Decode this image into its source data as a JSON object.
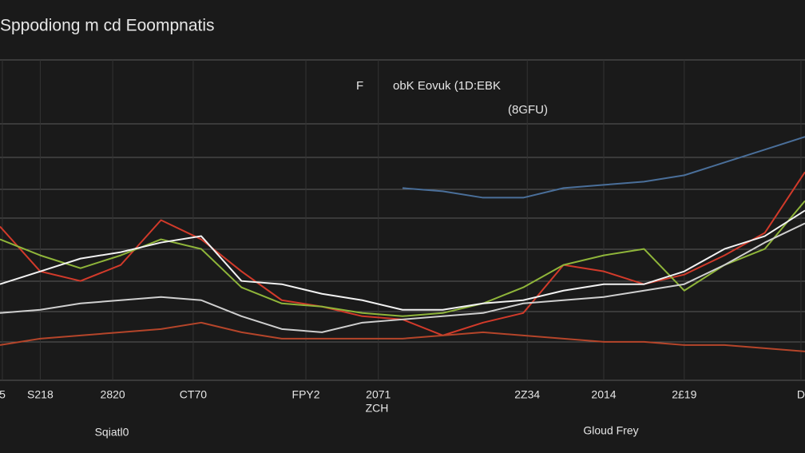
{
  "chart_data": {
    "type": "line",
    "title": "Sppodiong m cd Eoompnatis",
    "annotations": [
      "F",
      "obK Eovuk (1D:EBK",
      "(8GFU)",
      "ZCH",
      "Sqiatl0",
      "Gloud Frey"
    ],
    "x": [
      0,
      5,
      10,
      15,
      20,
      25,
      30,
      35,
      40,
      45,
      50,
      55,
      60,
      65,
      70,
      75,
      80,
      85,
      90,
      95,
      100
    ],
    "xlim": [
      0,
      100
    ],
    "xticks": [
      {
        "value": 0.3,
        "label": "5"
      },
      {
        "value": 5,
        "label": "S218"
      },
      {
        "value": 14,
        "label": "2820"
      },
      {
        "value": 24,
        "label": "CT70"
      },
      {
        "value": 38,
        "label": "FPY2"
      },
      {
        "value": 47,
        "label": "2071"
      },
      {
        "value": 65.5,
        "label": "2Z34"
      },
      {
        "value": 75,
        "label": "2014"
      },
      {
        "value": 85,
        "label": "2£19"
      },
      {
        "value": 99.5,
        "label": "D"
      }
    ],
    "ylim": [
      0,
      100
    ],
    "series": [
      {
        "color": "#d23a2a",
        "values": [
          48,
          34,
          31,
          36,
          50,
          44,
          34,
          25,
          23,
          20,
          19,
          14,
          18,
          21,
          36,
          34,
          30,
          33,
          39,
          46,
          65
        ]
      },
      {
        "color": "#8fb53a",
        "values": [
          44,
          39,
          35,
          39,
          44,
          41,
          29,
          24,
          23,
          21,
          20,
          21,
          24,
          29,
          36,
          39,
          41,
          28,
          36,
          41,
          56
        ]
      },
      {
        "color": "#f2f2f2",
        "values": [
          30,
          34,
          38,
          40,
          43,
          45,
          31,
          30,
          27,
          25,
          22,
          22,
          24,
          25,
          28,
          30,
          30,
          34,
          41,
          45,
          53
        ]
      },
      {
        "color": "#cfcfcf",
        "values": [
          21,
          22,
          24,
          25,
          26,
          25,
          20,
          16,
          15,
          18,
          19,
          20,
          21,
          24,
          25,
          26,
          28,
          30,
          36,
          43,
          49
        ]
      },
      {
        "color": "#b5452a",
        "values": [
          11,
          13,
          14,
          15,
          16,
          18,
          15,
          13,
          13,
          13,
          13,
          14,
          15,
          14,
          13,
          12,
          12,
          11,
          11,
          10,
          9
        ]
      },
      {
        "color": "#4a6f9a",
        "values": [
          null,
          null,
          null,
          null,
          null,
          null,
          null,
          null,
          null,
          null,
          60,
          59,
          57,
          57,
          60,
          61,
          62,
          64,
          68,
          72,
          76
        ]
      }
    ]
  }
}
